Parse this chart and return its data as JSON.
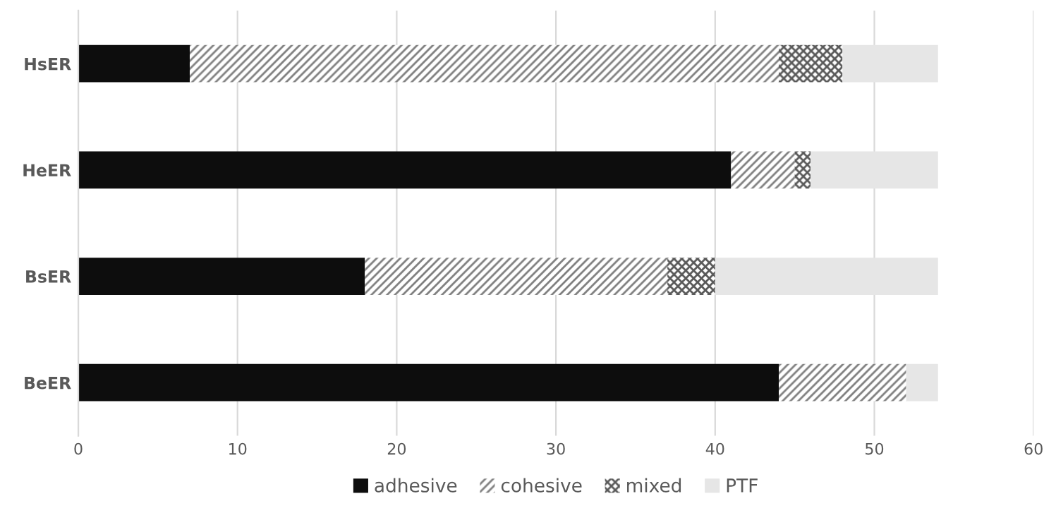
{
  "chart_data": {
    "type": "bar",
    "orientation": "horizontal",
    "stacked": true,
    "categories": [
      "HsER",
      "HeER",
      "BsER",
      "BeER"
    ],
    "series": [
      {
        "name": "adhesive",
        "color": "#0d0d0d",
        "values": [
          7,
          41,
          18,
          44
        ]
      },
      {
        "name": "cohesive",
        "color": "#7f7f7f",
        "values": [
          37,
          4,
          19,
          8
        ]
      },
      {
        "name": "mixed",
        "color": "#595959",
        "values": [
          4,
          1,
          3,
          0
        ]
      },
      {
        "name": "PTF",
        "color": "#e6e6e6",
        "values": [
          6,
          8,
          14,
          2
        ]
      }
    ],
    "xlim": [
      0,
      60
    ],
    "xticks": [
      0,
      10,
      20,
      30,
      40,
      50,
      60
    ],
    "grid": "x",
    "legend": "bottom"
  }
}
